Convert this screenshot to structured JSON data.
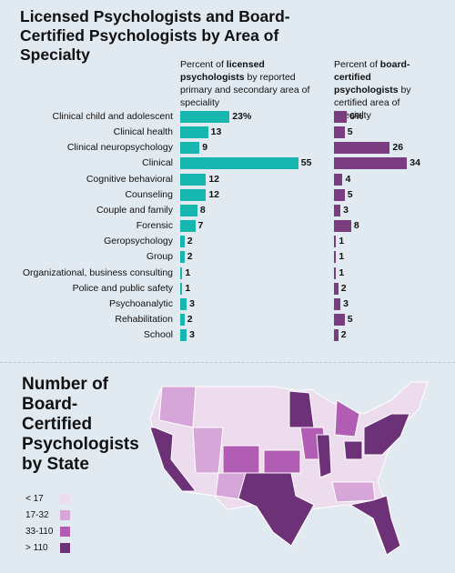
{
  "title": "Licensed Psychologists and Board-Certified Psychologists by Area of Specialty",
  "chart_data": [
    {
      "type": "bar",
      "orientation": "horizontal",
      "subtitle": {
        "prefix": "Percent of",
        "bold": "licensed psychologists",
        "suffix": "by reported primary and secondary area of speciality"
      },
      "categories": [
        "Clinical child and adolescent",
        "Clinical health",
        "Clinical neuropsychology",
        "Clinical",
        "Cognitive behavioral",
        "Counseling",
        "Couple and family",
        "Forensic",
        "Geropsychology",
        "Group",
        "Organizational, business consulting",
        "Police and public safety",
        "Psychoanalytic",
        "Rehabilitation",
        "School"
      ],
      "values": [
        23,
        13,
        9,
        55,
        12,
        12,
        8,
        7,
        2,
        2,
        1,
        1,
        3,
        2,
        3
      ],
      "value_labels": [
        "23%",
        "13",
        "9",
        "55",
        "12",
        "12",
        "8",
        "7",
        "2",
        "2",
        "1",
        "1",
        "3",
        "2",
        "3"
      ],
      "color": "#17b6ae"
    },
    {
      "type": "bar",
      "orientation": "horizontal",
      "subtitle": {
        "prefix": "Percent of",
        "bold": "board-certified psychologists",
        "suffix": "by certified area of specialty"
      },
      "values": [
        6,
        5,
        26,
        34,
        4,
        5,
        3,
        8,
        1,
        1,
        1,
        2,
        3,
        5,
        2
      ],
      "value_labels": [
        "6%",
        "5",
        "26",
        "34",
        "4",
        "5",
        "3",
        "8",
        "1",
        "1",
        "1",
        "2",
        "3",
        "5",
        "2"
      ],
      "color": "#7a3d80"
    }
  ],
  "map": {
    "title": "Number of Board-Certified Psychologists by State",
    "legend": [
      {
        "label": "< 17",
        "color": "#eddcee"
      },
      {
        "label": "17-32",
        "color": "#d6a6d8"
      },
      {
        "label": "33-110",
        "color": "#b15db3"
      },
      {
        "label": "> 110",
        "color": "#6d3177"
      }
    ]
  }
}
